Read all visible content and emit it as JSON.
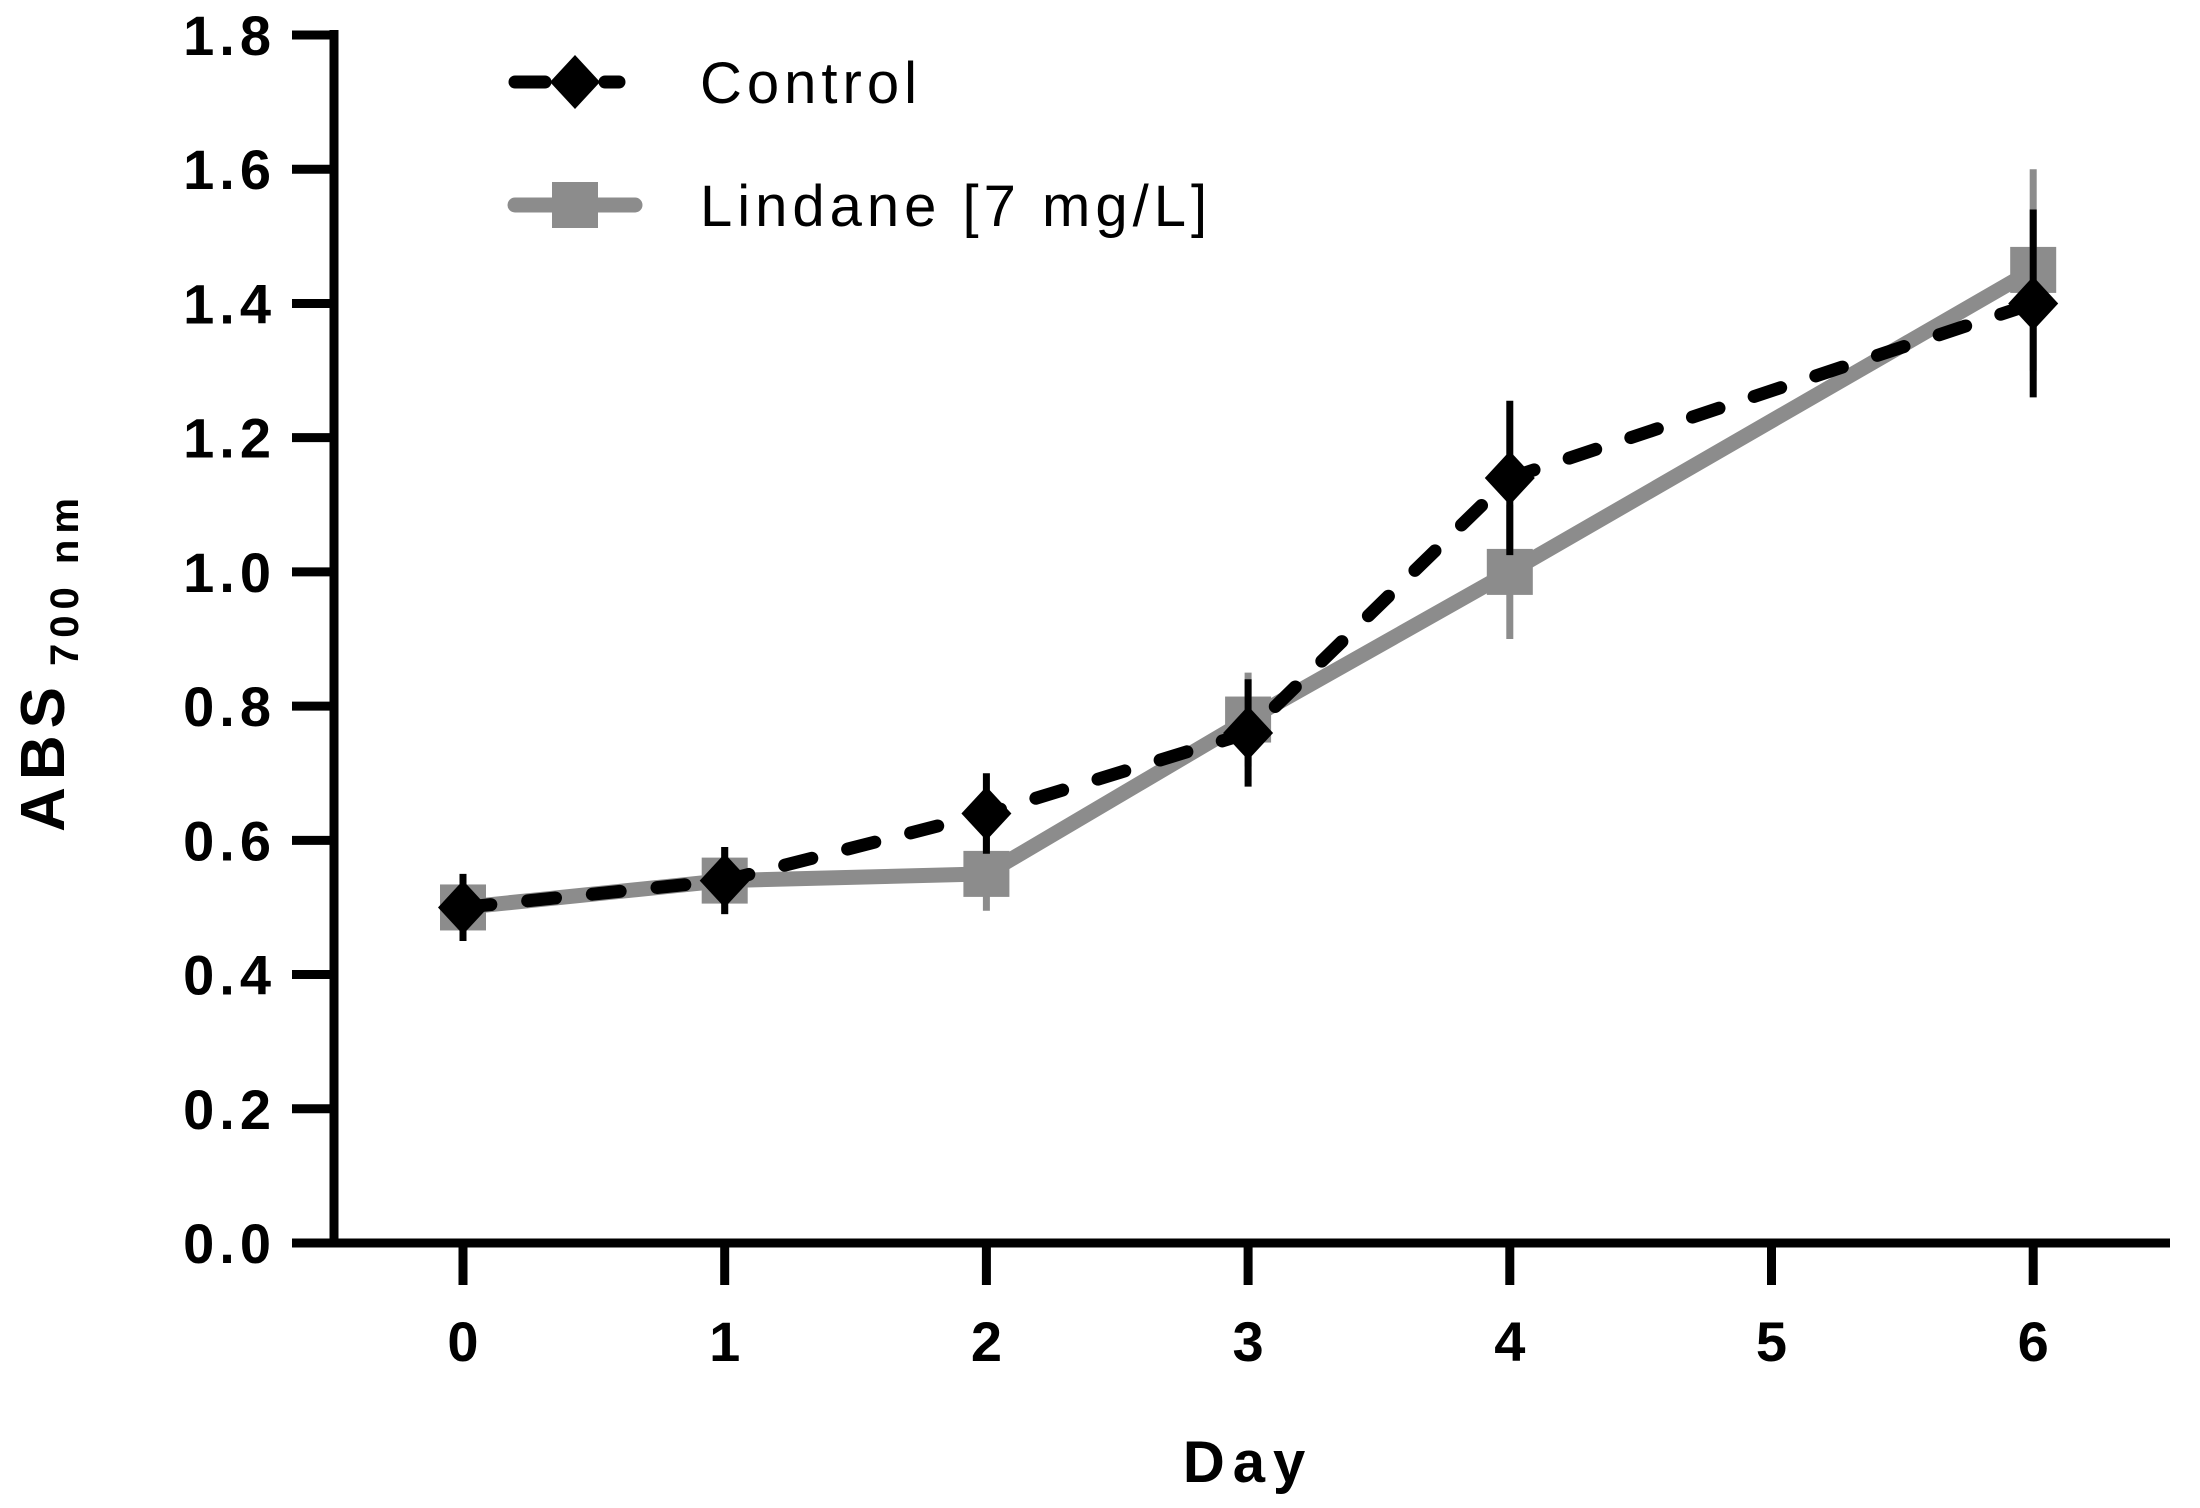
{
  "figure": {
    "background": "#ffffff",
    "axis_color": "#000000",
    "xlabel": "Day",
    "ylabel_main": "ABS",
    "ylabel_sub": "700 nm"
  },
  "chart_data": {
    "type": "line",
    "title": "",
    "xlabel": "Day",
    "ylabel": "ABS 700 nm",
    "grid": false,
    "legend_position": "inside top-left",
    "xlim": [
      -0.5,
      6.5
    ],
    "ylim": [
      0.0,
      1.8
    ],
    "xticks": [
      {
        "value": 0,
        "label": "0"
      },
      {
        "value": 1,
        "label": "1"
      },
      {
        "value": 2,
        "label": "2"
      },
      {
        "value": 3,
        "label": "3"
      },
      {
        "value": 4,
        "label": "4"
      },
      {
        "value": 5,
        "label": "5"
      },
      {
        "value": 6,
        "label": "6"
      }
    ],
    "yticks": [
      {
        "value": 0.0,
        "label": "0.0"
      },
      {
        "value": 0.2,
        "label": "0.2"
      },
      {
        "value": 0.4,
        "label": "0.4"
      },
      {
        "value": 0.6,
        "label": "0.6"
      },
      {
        "value": 0.8,
        "label": "0.8"
      },
      {
        "value": 1.0,
        "label": "1.0"
      },
      {
        "value": 1.2,
        "label": "1.2"
      },
      {
        "value": 1.4,
        "label": "1.4"
      },
      {
        "value": 1.6,
        "label": "1.6"
      },
      {
        "value": 1.8,
        "label": "1.8"
      }
    ],
    "series": [
      {
        "name": "Control",
        "color": "#000000",
        "line_style": "dashed",
        "marker": "diamond",
        "x": [
          0,
          1,
          2,
          3,
          4,
          6
        ],
        "values": [
          0.5,
          0.54,
          0.64,
          0.76,
          1.14,
          1.4
        ],
        "errors": [
          0.05,
          0.05,
          0.06,
          0.08,
          0.115,
          0.14
        ]
      },
      {
        "name": "Lindane [7 mg/L]",
        "color": "#8c8c8c",
        "line_style": "solid",
        "marker": "square",
        "x": [
          0,
          1,
          2,
          3,
          4,
          6
        ],
        "values": [
          0.5,
          0.54,
          0.55,
          0.78,
          1.0,
          1.45
        ],
        "errors": [
          0.04,
          0.05,
          0.055,
          0.07,
          0.1,
          0.15
        ]
      }
    ]
  }
}
